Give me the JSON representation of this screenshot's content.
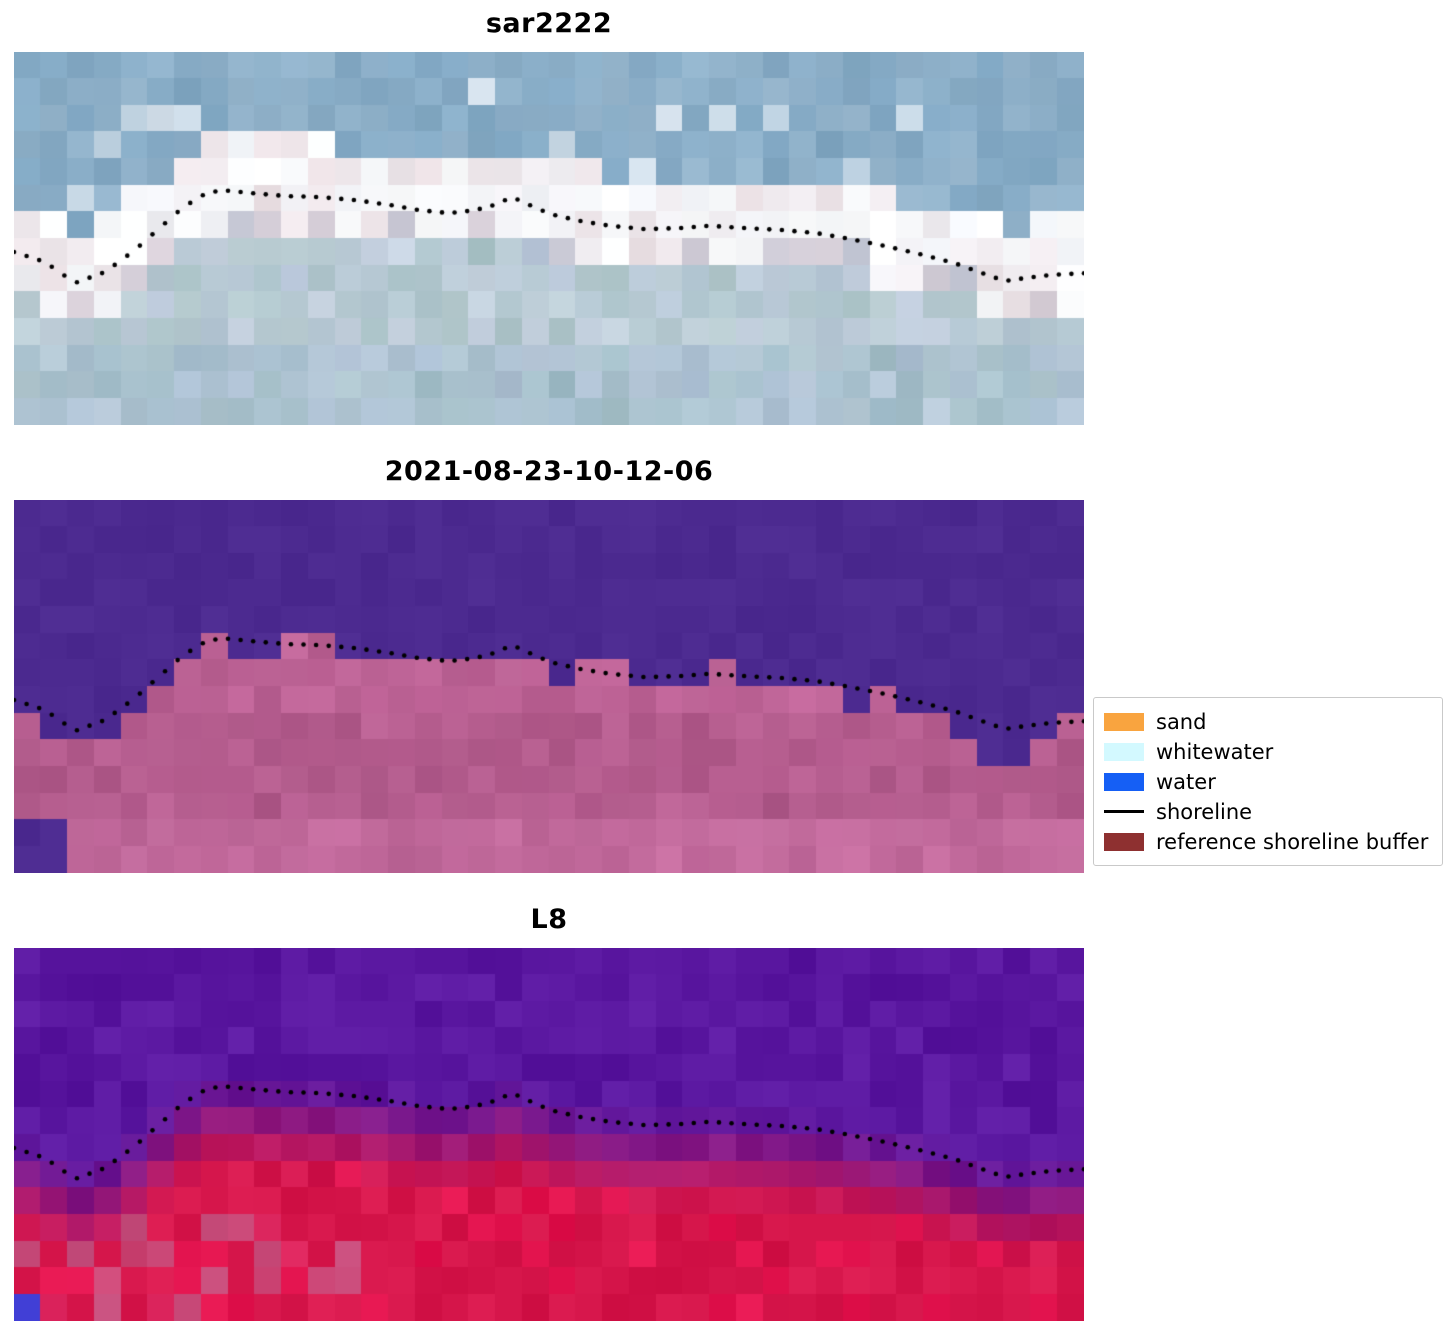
{
  "figure": {
    "background": "#ffffff"
  },
  "chart_data": {
    "type": "image",
    "description": "Three co-registered coastal satellite image panels (SAR RGB composite, classified output, Landsat 8) with a detected shoreline plotted as black dots and a classification legend",
    "grid": {
      "cols": 40,
      "rows": 14
    },
    "panels": [
      {
        "title": "sar2222",
        "style": "sar",
        "colors": {
          "sky": "#7fa6c2",
          "cloud": "#f3f6fa",
          "pink": "#e8d4d8",
          "low": "#b7c5d8",
          "lowalt": "#9fbdbd"
        }
      },
      {
        "title": "2021-08-23-10-12-06",
        "style": "class",
        "colors": {
          "water": "#4c2a90",
          "land": "#c4689c",
          "landdark": "#a75382",
          "landlight": "#d07fae"
        }
      },
      {
        "title": "L8",
        "style": "l8",
        "colors": {
          "purple": "#5a17a0",
          "red": "#d6164b",
          "redbright": "#ee1050",
          "pink": "#c4638f",
          "blue": "#4341d8"
        }
      }
    ],
    "shoreline": {
      "dot_color": "#000000",
      "dot_count": 85,
      "points": [
        [
          0.0,
          0.536
        ],
        [
          0.029,
          0.563
        ],
        [
          0.057,
          0.619
        ],
        [
          0.085,
          0.59
        ],
        [
          0.113,
          0.531
        ],
        [
          0.136,
          0.472
        ],
        [
          0.155,
          0.424
        ],
        [
          0.174,
          0.386
        ],
        [
          0.193,
          0.37
        ],
        [
          0.221,
          0.378
        ],
        [
          0.253,
          0.386
        ],
        [
          0.286,
          0.389
        ],
        [
          0.319,
          0.397
        ],
        [
          0.351,
          0.41
        ],
        [
          0.379,
          0.424
        ],
        [
          0.407,
          0.432
        ],
        [
          0.431,
          0.424
        ],
        [
          0.449,
          0.41
        ],
        [
          0.464,
          0.391
        ],
        [
          0.473,
          0.397
        ],
        [
          0.487,
          0.418
        ],
        [
          0.505,
          0.437
        ],
        [
          0.529,
          0.453
        ],
        [
          0.557,
          0.466
        ],
        [
          0.59,
          0.475
        ],
        [
          0.622,
          0.472
        ],
        [
          0.65,
          0.466
        ],
        [
          0.683,
          0.472
        ],
        [
          0.716,
          0.477
        ],
        [
          0.749,
          0.485
        ],
        [
          0.781,
          0.501
        ],
        [
          0.814,
          0.52
        ],
        [
          0.847,
          0.542
        ],
        [
          0.879,
          0.566
        ],
        [
          0.907,
          0.595
        ],
        [
          0.926,
          0.614
        ],
        [
          0.945,
          0.606
        ],
        [
          0.968,
          0.598
        ],
        [
          1.0,
          0.593
        ]
      ]
    },
    "legend": {
      "items": [
        {
          "label": "sand",
          "color": "#f9a43f",
          "type": "patch"
        },
        {
          "label": "whitewater",
          "color": "#d3f9ff",
          "type": "patch"
        },
        {
          "label": "water",
          "color": "#155ff5",
          "type": "patch"
        },
        {
          "label": "shoreline",
          "color": "#000000",
          "type": "line"
        },
        {
          "label": "reference shoreline buffer",
          "color": "#8e3030",
          "type": "patch"
        }
      ]
    }
  }
}
